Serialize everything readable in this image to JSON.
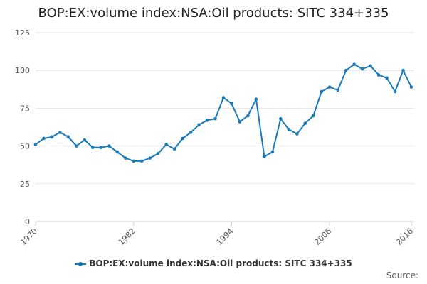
{
  "chart_data": {
    "type": "line",
    "title": "BOP:EX:volume index:NSA:Oil products: SITC 334+335",
    "xlabel": "",
    "ylabel": "",
    "ylim": [
      0,
      125
    ],
    "yticks": [
      0,
      25,
      50,
      75,
      100,
      125
    ],
    "xlim": [
      1970,
      2016
    ],
    "xticks": [
      1970,
      1982,
      1994,
      2006,
      2016
    ],
    "grid": true,
    "legend_position": "bottom",
    "series": [
      {
        "name": "BOP:EX:volume index:NSA:Oil products: SITC 334+335",
        "color": "#1a7ab8",
        "x": [
          1970,
          1971,
          1972,
          1973,
          1974,
          1975,
          1976,
          1977,
          1978,
          1979,
          1980,
          1981,
          1982,
          1983,
          1984,
          1985,
          1986,
          1987,
          1988,
          1989,
          1990,
          1991,
          1992,
          1993,
          1994,
          1995,
          1996,
          1997,
          1998,
          1999,
          2000,
          2001,
          2002,
          2003,
          2004,
          2005,
          2006,
          2007,
          2008,
          2009,
          2010,
          2011,
          2012,
          2013,
          2014,
          2015,
          2016
        ],
        "values": [
          51,
          55,
          56,
          59,
          56,
          50,
          54,
          49,
          49,
          50,
          46,
          42,
          40,
          40,
          42,
          45,
          51,
          48,
          55,
          59,
          64,
          67,
          68,
          82,
          78,
          66,
          70,
          81,
          43,
          46,
          68,
          61,
          58,
          65,
          70,
          86,
          89,
          87,
          100,
          104,
          101,
          103,
          97,
          95,
          86,
          100,
          89
        ]
      }
    ]
  },
  "source_label": "Source:"
}
